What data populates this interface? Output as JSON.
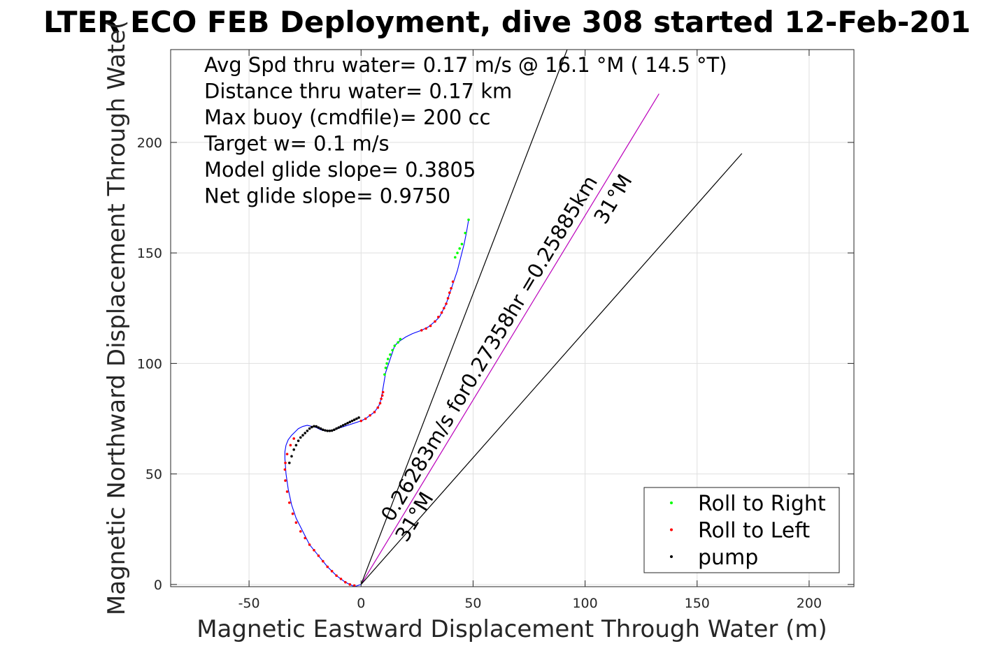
{
  "chart_data": {
    "type": "scatter",
    "title": "LTER ECO FEB Deployment, dive 308 started 12-Feb-201",
    "xlabel": "Magnetic Eastward Displacement Through Water (m)",
    "ylabel": "Magnetic Northward Displacement Through Wate(",
    "xlim": [
      -85,
      220
    ],
    "ylim": [
      -1,
      242
    ],
    "xticks": [
      -50,
      0,
      50,
      100,
      150,
      200
    ],
    "xtick_labels": [
      "-50",
      "0",
      "50",
      "100",
      "150",
      "200"
    ],
    "yticks": [
      0,
      50,
      100,
      150,
      200
    ],
    "ytick_labels": [
      "0",
      "50",
      "100",
      "150",
      "200"
    ],
    "grid": true,
    "legend_position": "bottom-right",
    "stats": [
      "Avg Spd thru water=  0.17 m/s @  16.1 °M ( 14.5 °T)",
      "Distance thru water=  0.17 km",
      "Max buoy (cmdfile)= 200 cc",
      "Target w= 0.1 m/s",
      "Model glide slope= 0.3805",
      "Net glide slope= 0.9750"
    ],
    "annotations": {
      "current_label": "0.26283m/s for0.27358hr =0.25885km",
      "heading_upper": "31°M",
      "heading_lower": "31°M"
    },
    "lines": {
      "current_line": {
        "x": [
          0,
          133
        ],
        "y": [
          0,
          222
        ],
        "color": "#bb00bb"
      },
      "heading_edge_1": {
        "x": [
          0,
          92
        ],
        "y": [
          0,
          242
        ],
        "color": "#000000"
      },
      "heading_edge_2": {
        "x": [
          0,
          170
        ],
        "y": [
          0,
          195
        ],
        "color": "#000000"
      }
    },
    "track": {
      "color": "#0000ff",
      "x": [
        0,
        -3,
        -7,
        -11,
        -15,
        -19,
        -23,
        -26,
        -29,
        -31,
        -32.5,
        -33.5,
        -34,
        -34,
        -33.5,
        -32.5,
        -31,
        -29.5,
        -28,
        -26,
        -24,
        -22,
        -20,
        -18,
        -16,
        -14,
        -12,
        -9,
        -6,
        -3,
        0,
        2,
        4,
        6,
        8,
        9,
        9.5,
        10,
        10.5,
        11,
        12,
        13,
        14,
        15,
        17,
        20,
        23,
        27,
        30,
        33,
        35,
        36.5,
        38,
        39,
        40,
        41,
        42,
        43,
        44,
        45,
        46,
        47,
        48
      ],
      "y": [
        0,
        -1,
        1,
        4,
        8,
        13,
        18,
        24,
        30,
        36,
        43,
        50,
        57,
        60,
        63,
        65.5,
        67.5,
        69,
        70.5,
        71.5,
        72,
        71.5,
        71,
        70,
        69.5,
        69.5,
        70,
        71,
        72,
        73,
        74,
        75,
        76.5,
        78,
        81,
        84,
        87,
        90,
        93,
        96,
        99,
        102,
        105,
        108,
        110,
        112,
        113.5,
        115,
        116.5,
        119,
        121,
        124,
        127,
        130,
        133,
        136,
        139,
        142,
        146,
        150,
        154,
        159,
        165
      ]
    },
    "series": [
      {
        "name": "Roll to Right",
        "color": "#00ff00",
        "x": [
          10.5,
          11,
          11.5,
          12,
          13,
          14,
          15,
          16.5,
          17.5,
          42,
          43,
          44,
          45,
          46.5,
          48
        ],
        "y": [
          95,
          98,
          100,
          102,
          104,
          106,
          108,
          109.5,
          111,
          148,
          150,
          152,
          154,
          159,
          165
        ]
      },
      {
        "name": "Roll to Left",
        "color": "#ff0000",
        "x": [
          -3,
          -5,
          -7,
          -9,
          -11,
          -13,
          -15,
          -17,
          -19,
          -21,
          -23,
          -25,
          -27,
          -29,
          -30.5,
          -32,
          -33,
          -33.8,
          -34,
          -33.8,
          -33,
          -31.5,
          -30,
          0,
          2,
          4,
          6,
          7.5,
          8.5,
          9,
          9.5,
          9.8,
          27,
          29,
          31,
          33,
          34.5,
          36,
          37,
          38,
          38.8,
          39.5,
          40.2,
          41
        ],
        "y": [
          -0.5,
          0,
          1,
          2.5,
          4,
          6,
          8,
          10.5,
          13,
          15.5,
          18,
          21,
          24,
          28,
          32,
          37,
          42,
          47,
          52,
          55,
          59,
          63,
          66,
          74,
          75,
          76.5,
          78,
          80,
          82,
          84,
          85.5,
          87,
          115,
          115.8,
          117,
          119,
          121,
          123,
          125,
          127,
          129.5,
          132,
          134,
          137
        ]
      },
      {
        "name": "pump",
        "color": "#000000",
        "x": [
          -32,
          -31,
          -30,
          -29,
          -28,
          -27,
          -26,
          -25,
          -24,
          -23,
          -22,
          -21,
          -20,
          -19,
          -18,
          -17,
          -16,
          -15,
          -14,
          -13,
          -12,
          -11,
          -10,
          -9,
          -8,
          -7,
          -6,
          -5,
          -4,
          -3,
          -2,
          -1
        ],
        "y": [
          55,
          58,
          61,
          63,
          65,
          66.5,
          67.5,
          68.5,
          69.5,
          70.5,
          71.2,
          71.6,
          71.5,
          71,
          70.5,
          70,
          69.7,
          69.5,
          69.5,
          69.6,
          70,
          70.5,
          71,
          71.5,
          72,
          72.5,
          73,
          73.5,
          74,
          74.5,
          75,
          75.5
        ]
      }
    ]
  }
}
